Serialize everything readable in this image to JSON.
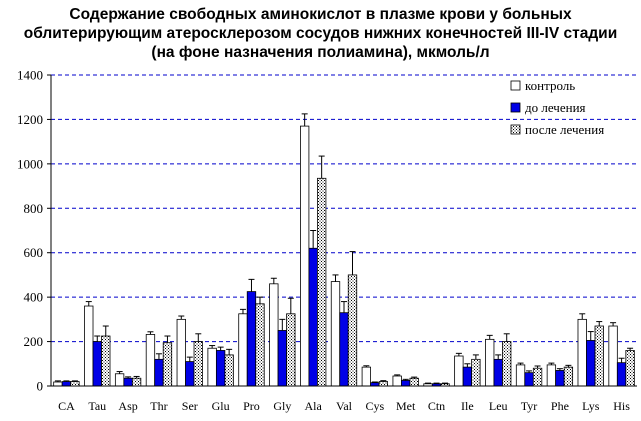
{
  "chart_data": {
    "type": "bar",
    "title": [
      "Содержание свободных аминокислот в плазме крови у больных",
      "облитерирующим атеросклерозом сосудов нижних конечностей  III-IV стадии",
      "(на фоне назначения полиамина), мкмоль/л"
    ],
    "xlabel": "",
    "ylabel": "",
    "ylim": [
      0,
      1400
    ],
    "yticks": [
      "0",
      "200",
      "400",
      "600",
      "800",
      "1000",
      "1200",
      "1400"
    ],
    "grid": "horizontal dashed",
    "legend_position": "top-right",
    "categories": [
      "CA",
      "Tau",
      "Asp",
      "Thr",
      "Ser",
      "Glu",
      "Pro",
      "Gly",
      "Ala",
      "Val",
      "Cys",
      "Met",
      "Ctn",
      "Ile",
      "Leu",
      "Tyr",
      "Phe",
      "Lys",
      "His"
    ],
    "series": [
      {
        "name": "контроль",
        "pattern": "white",
        "values": [
          18,
          360,
          55,
          232,
          300,
          170,
          325,
          460,
          1170,
          470,
          85,
          45,
          10,
          135,
          210,
          95,
          95,
          300,
          270
        ],
        "errors": [
          5,
          20,
          10,
          12,
          15,
          12,
          20,
          25,
          55,
          30,
          6,
          5,
          3,
          12,
          18,
          8,
          8,
          25,
          15
        ]
      },
      {
        "name": "до лечения",
        "pattern": "blue",
        "values": [
          20,
          200,
          35,
          120,
          110,
          160,
          425,
          250,
          620,
          330,
          15,
          25,
          10,
          85,
          120,
          60,
          70,
          205,
          105
        ],
        "errors": [
          3,
          25,
          6,
          25,
          20,
          15,
          55,
          50,
          80,
          50,
          3,
          5,
          3,
          15,
          20,
          8,
          8,
          40,
          20
        ]
      },
      {
        "name": "после лечения",
        "pattern": "dotted",
        "values": [
          20,
          225,
          35,
          195,
          200,
          140,
          370,
          325,
          935,
          500,
          20,
          35,
          10,
          120,
          200,
          80,
          85,
          270,
          160
        ],
        "errors": [
          3,
          45,
          8,
          30,
          35,
          25,
          30,
          70,
          100,
          105,
          4,
          5,
          3,
          20,
          35,
          10,
          8,
          20,
          10
        ]
      }
    ],
    "colors": {
      "control_fill": "#ffffff",
      "before_fill": "#0000e6",
      "after_dot": "#000000",
      "grid": "#0000cc",
      "axis": "#000000"
    }
  }
}
